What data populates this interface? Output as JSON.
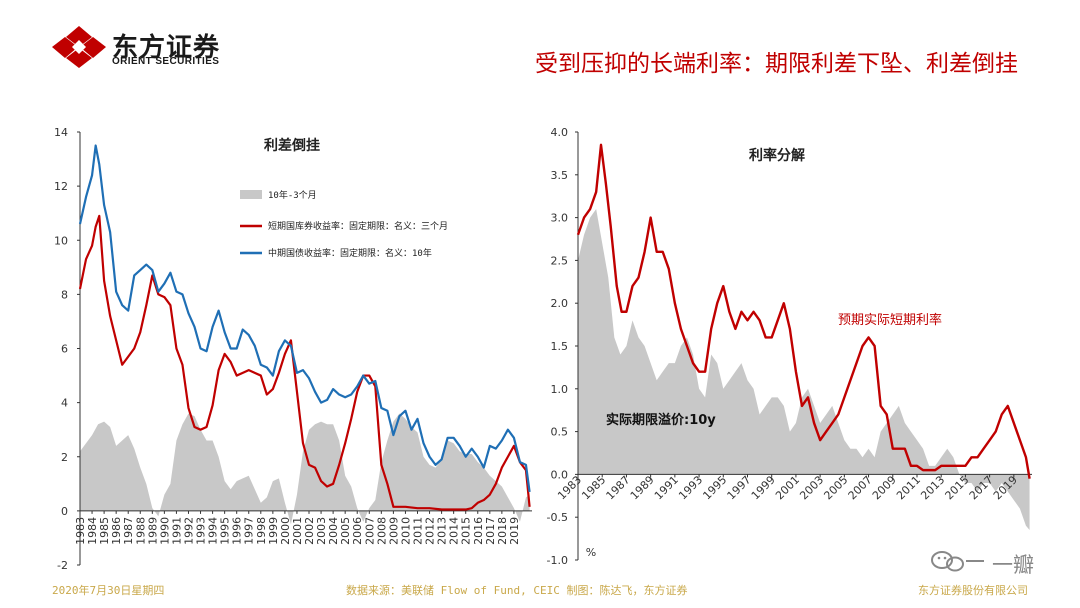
{
  "header": {
    "logo_cn": "东方证券",
    "logo_en": "ORIENT SECURITIES",
    "title": "受到压抑的长端利率：期限利差下坠、利差倒挂"
  },
  "footer": {
    "date": "2020年7月30日星期四",
    "source": "数据来源：美联储 Flow of Fund, CEIC   制图：陈达飞，东方证券",
    "company": "东方证券股份有限公司"
  },
  "watermark": {
    "text": "一瓣",
    "icon": "wechat-icon"
  },
  "colors": {
    "red": "#c00000",
    "blue": "#1f6fb5",
    "gray": "#c8c8c8",
    "title_red": "#c00000"
  },
  "chart_data": [
    {
      "type": "line",
      "title": "利差倒挂",
      "xlabel": "",
      "ylabel": "",
      "ylim": [
        -2,
        14
      ],
      "yticks": [
        -2,
        0,
        2,
        4,
        6,
        8,
        10,
        12,
        14
      ],
      "xlim": [
        1983,
        2020.5
      ],
      "xticks": [
        "1983",
        "1984",
        "1985",
        "1986",
        "1987",
        "1988",
        "1989",
        "1990",
        "1991",
        "1992",
        "1993",
        "1994",
        "1995",
        "1996",
        "1997",
        "1998",
        "1999",
        "2000",
        "2001",
        "2002",
        "2003",
        "2004",
        "2005",
        "2006",
        "2007",
        "2008",
        "2009",
        "2010",
        "2011",
        "2012",
        "2013",
        "2014",
        "2015",
        "2016",
        "2017",
        "2018",
        "2019"
      ],
      "legend_position": "top-right",
      "series": [
        {
          "name": "10年-3个月",
          "kind": "area",
          "color": "#c8c8c8",
          "x": [
            1983,
            1983.5,
            1984,
            1984.5,
            1985,
            1985.5,
            1986,
            1986.5,
            1987,
            1987.5,
            1988,
            1988.5,
            1989,
            1989.5,
            1990,
            1990.5,
            1991,
            1991.5,
            1992,
            1992.5,
            1993,
            1993.5,
            1994,
            1994.5,
            1995,
            1995.5,
            1996,
            1996.5,
            1997,
            1997.5,
            1998,
            1998.5,
            1999,
            1999.5,
            2000,
            2000.5,
            2001,
            2001.5,
            2002,
            2002.5,
            2003,
            2003.5,
            2004,
            2004.5,
            2005,
            2005.5,
            2006,
            2006.5,
            2007,
            2007.5,
            2008,
            2008.5,
            2009,
            2009.5,
            2010,
            2010.5,
            2011,
            2011.5,
            2012,
            2012.5,
            2013,
            2013.5,
            2014,
            2014.5,
            2015,
            2015.5,
            2016,
            2016.5,
            2017,
            2017.5,
            2018,
            2018.5,
            2019,
            2019.5,
            2020,
            2020.3
          ],
          "values": [
            2.2,
            2.5,
            2.8,
            3.2,
            3.3,
            3.1,
            2.4,
            2.6,
            2.8,
            2.3,
            1.6,
            1.0,
            0.1,
            -0.2,
            0.6,
            1.0,
            2.6,
            3.2,
            3.6,
            3.5,
            3.0,
            2.6,
            2.6,
            2.0,
            1.1,
            0.8,
            1.1,
            1.2,
            1.3,
            0.8,
            0.3,
            0.5,
            1.1,
            1.2,
            0.3,
            -0.5,
            0.6,
            2.2,
            3.0,
            3.2,
            3.3,
            3.2,
            3.2,
            2.6,
            1.3,
            0.9,
            0.1,
            -0.4,
            0.1,
            0.4,
            1.8,
            2.6,
            3.3,
            3.6,
            3.4,
            3.1,
            2.9,
            2.0,
            1.7,
            1.6,
            1.9,
            2.6,
            2.5,
            2.2,
            2.1,
            2.1,
            1.8,
            1.6,
            1.3,
            1.1,
            0.9,
            0.5,
            0.1,
            -0.4,
            0.5,
            0.6
          ]
        },
        {
          "name": "短期国库券收益率：固定期限：名义：三个月",
          "kind": "line",
          "color": "#c00000",
          "x": [
            1983,
            1983.5,
            1984,
            1984.3,
            1984.6,
            1985,
            1985.5,
            1986,
            1986.5,
            1987,
            1987.5,
            1988,
            1988.5,
            1989,
            1989.5,
            1990,
            1990.5,
            1991,
            1991.5,
            1992,
            1992.5,
            1993,
            1993.5,
            1994,
            1994.5,
            1995,
            1995.5,
            1996,
            1996.5,
            1997,
            1997.5,
            1998,
            1998.5,
            1999,
            1999.5,
            2000,
            2000.5,
            2001,
            2001.5,
            2002,
            2002.5,
            2003,
            2003.5,
            2004,
            2004.5,
            2005,
            2005.5,
            2006,
            2006.5,
            2007,
            2007.5,
            2008,
            2008.5,
            2009,
            2009.5,
            2010,
            2011,
            2012,
            2013,
            2014,
            2015,
            2015.5,
            2016,
            2016.5,
            2017,
            2017.5,
            2018,
            2018.5,
            2019,
            2019.5,
            2020,
            2020.3
          ],
          "values": [
            8.2,
            9.3,
            9.8,
            10.5,
            10.9,
            8.5,
            7.2,
            6.3,
            5.4,
            5.7,
            6.0,
            6.6,
            7.6,
            8.7,
            8.0,
            7.9,
            7.6,
            6.0,
            5.4,
            3.8,
            3.1,
            3.0,
            3.1,
            3.9,
            5.2,
            5.8,
            5.5,
            5.0,
            5.1,
            5.2,
            5.1,
            5.0,
            4.3,
            4.5,
            5.1,
            5.8,
            6.3,
            4.4,
            2.5,
            1.7,
            1.6,
            1.1,
            0.9,
            1.0,
            1.7,
            2.5,
            3.4,
            4.4,
            5.0,
            5.0,
            4.6,
            1.7,
            1.0,
            0.15,
            0.15,
            0.15,
            0.1,
            0.1,
            0.05,
            0.05,
            0.05,
            0.1,
            0.3,
            0.4,
            0.6,
            1.0,
            1.6,
            2.0,
            2.4,
            1.8,
            1.5,
            0.15
          ]
        },
        {
          "name": "中期国债收益率：固定期限：名义：10年",
          "kind": "line",
          "color": "#1f6fb5",
          "x": [
            1983,
            1983.5,
            1984,
            1984.3,
            1984.6,
            1985,
            1985.5,
            1986,
            1986.5,
            1987,
            1987.5,
            1988,
            1988.5,
            1989,
            1989.5,
            1990,
            1990.5,
            1991,
            1991.5,
            1992,
            1992.5,
            1993,
            1993.5,
            1994,
            1994.5,
            1995,
            1995.5,
            1996,
            1996.5,
            1997,
            1997.5,
            1998,
            1998.5,
            1999,
            1999.5,
            2000,
            2000.5,
            2001,
            2001.5,
            2002,
            2002.5,
            2003,
            2003.5,
            2004,
            2004.5,
            2005,
            2005.5,
            2006,
            2006.5,
            2007,
            2007.5,
            2008,
            2008.5,
            2009,
            2009.5,
            2010,
            2010.5,
            2011,
            2011.5,
            2012,
            2012.5,
            2013,
            2013.5,
            2014,
            2014.5,
            2015,
            2015.5,
            2016,
            2016.5,
            2017,
            2017.5,
            2018,
            2018.5,
            2019,
            2019.5,
            2020,
            2020.3
          ],
          "values": [
            10.6,
            11.6,
            12.4,
            13.5,
            12.8,
            11.3,
            10.3,
            8.1,
            7.6,
            7.4,
            8.7,
            8.9,
            9.1,
            8.9,
            8.1,
            8.4,
            8.8,
            8.1,
            8.0,
            7.3,
            6.8,
            6.0,
            5.9,
            6.8,
            7.4,
            6.6,
            6.0,
            6.0,
            6.7,
            6.5,
            6.1,
            5.4,
            5.3,
            5.0,
            5.9,
            6.3,
            6.1,
            5.1,
            5.2,
            4.9,
            4.4,
            4.0,
            4.1,
            4.5,
            4.3,
            4.2,
            4.3,
            4.6,
            5.0,
            4.7,
            4.8,
            3.8,
            3.7,
            2.8,
            3.5,
            3.7,
            3.0,
            3.4,
            2.5,
            2.0,
            1.7,
            1.9,
            2.7,
            2.7,
            2.4,
            2.0,
            2.3,
            2.0,
            1.6,
            2.4,
            2.3,
            2.6,
            3.0,
            2.7,
            1.8,
            1.7,
            0.7
          ]
        }
      ]
    },
    {
      "type": "area",
      "title": "利率分解",
      "xlabel": "",
      "ylabel": "%",
      "ylim": [
        -1.0,
        4.0
      ],
      "yticks": [
        -1.0,
        -0.5,
        0.0,
        0.5,
        1.0,
        1.5,
        2.0,
        2.5,
        3.0,
        3.5,
        4.0
      ],
      "yticklabels": [
        "-1.0",
        "-0.5",
        "0.0",
        "0.5",
        "1.0",
        "1.5",
        "2.0",
        "2.5",
        "3.0",
        "3.5",
        "4.0"
      ],
      "xlim": [
        1983,
        2020.5
      ],
      "xticks": [
        "1983",
        "1985",
        "1987",
        "1989",
        "1991",
        "1993",
        "1995",
        "1997",
        "1999",
        "2001",
        "2003",
        "2005",
        "2007",
        "2009",
        "2011",
        "2013",
        "2015",
        "2017",
        "2019"
      ],
      "annotations": [
        "预期实际短期利率",
        "实际期限溢价:10y"
      ],
      "series": [
        {
          "name": "实际期限溢价:10y",
          "kind": "area",
          "color": "#c8c8c8",
          "x": [
            1983,
            1983.5,
            1984,
            1984.5,
            1985,
            1985.5,
            1986,
            1986.5,
            1987,
            1987.5,
            1988,
            1988.5,
            1989,
            1989.5,
            1990,
            1990.5,
            1991,
            1991.5,
            1992,
            1992.5,
            1993,
            1993.5,
            1994,
            1994.5,
            1995,
            1995.5,
            1996,
            1996.5,
            1997,
            1997.5,
            1998,
            1998.5,
            1999,
            1999.5,
            2000,
            2000.5,
            2001,
            2001.5,
            2002,
            2002.5,
            2003,
            2003.5,
            2004,
            2004.5,
            2005,
            2005.5,
            2006,
            2006.5,
            2007,
            2007.5,
            2008,
            2008.5,
            2009,
            2009.5,
            2010,
            2010.5,
            2011,
            2011.5,
            2012,
            2012.5,
            2013,
            2013.5,
            2014,
            2014.5,
            2015,
            2015.5,
            2016,
            2016.5,
            2017,
            2017.5,
            2018,
            2018.5,
            2019,
            2019.5,
            2020,
            2020.3
          ],
          "values": [
            2.5,
            2.8,
            3.0,
            3.1,
            2.7,
            2.3,
            1.6,
            1.4,
            1.5,
            1.8,
            1.6,
            1.5,
            1.3,
            1.1,
            1.2,
            1.3,
            1.3,
            1.5,
            1.6,
            1.4,
            1.0,
            0.9,
            1.4,
            1.3,
            1.0,
            1.1,
            1.2,
            1.3,
            1.1,
            1.0,
            0.7,
            0.8,
            0.9,
            0.9,
            0.8,
            0.5,
            0.6,
            0.9,
            1.0,
            0.8,
            0.6,
            0.7,
            0.8,
            0.6,
            0.4,
            0.3,
            0.3,
            0.2,
            0.3,
            0.2,
            0.5,
            0.6,
            0.7,
            0.8,
            0.6,
            0.5,
            0.4,
            0.3,
            0.1,
            0.1,
            0.2,
            0.3,
            0.2,
            0.0,
            -0.1,
            -0.1,
            -0.2,
            -0.1,
            -0.1,
            -0.2,
            -0.1,
            -0.2,
            -0.3,
            -0.4,
            -0.6,
            -0.65
          ]
        },
        {
          "name": "预期实际短期利率",
          "kind": "line",
          "color": "#c00000",
          "x": [
            1983,
            1983.5,
            1984,
            1984.5,
            1984.9,
            1985.3,
            1985.7,
            1986.2,
            1986.6,
            1987,
            1987.5,
            1988,
            1988.5,
            1989,
            1989.5,
            1990,
            1990.5,
            1991,
            1991.5,
            1992,
            1992.5,
            1993,
            1993.5,
            1994,
            1994.5,
            1995,
            1995.5,
            1996,
            1996.5,
            1997,
            1997.5,
            1998,
            1998.5,
            1999,
            1999.5,
            2000,
            2000.5,
            2001,
            2001.5,
            2002,
            2002.5,
            2003,
            2003.5,
            2004,
            2004.5,
            2005,
            2005.5,
            2006,
            2006.5,
            2007,
            2007.5,
            2008,
            2008.5,
            2009,
            2009.5,
            2010,
            2010.5,
            2011,
            2011.5,
            2012,
            2012.5,
            2013,
            2013.5,
            2014,
            2014.5,
            2015,
            2015.5,
            2016,
            2016.5,
            2017,
            2017.5,
            2018,
            2018.5,
            2019,
            2019.5,
            2020,
            2020.3
          ],
          "values": [
            2.8,
            3.0,
            3.1,
            3.3,
            3.85,
            3.4,
            2.9,
            2.2,
            1.9,
            1.9,
            2.2,
            2.3,
            2.6,
            3.0,
            2.6,
            2.6,
            2.4,
            2.0,
            1.7,
            1.5,
            1.3,
            1.2,
            1.2,
            1.7,
            2.0,
            2.2,
            1.9,
            1.7,
            1.9,
            1.8,
            1.9,
            1.8,
            1.6,
            1.6,
            1.8,
            2.0,
            1.7,
            1.2,
            0.8,
            0.9,
            0.6,
            0.4,
            0.5,
            0.6,
            0.7,
            0.9,
            1.1,
            1.3,
            1.5,
            1.6,
            1.5,
            0.8,
            0.7,
            0.3,
            0.3,
            0.3,
            0.1,
            0.1,
            0.05,
            0.05,
            0.05,
            0.1,
            0.1,
            0.1,
            0.1,
            0.1,
            0.2,
            0.2,
            0.3,
            0.4,
            0.5,
            0.7,
            0.8,
            0.6,
            0.4,
            0.2,
            -0.05
          ]
        }
      ]
    }
  ]
}
